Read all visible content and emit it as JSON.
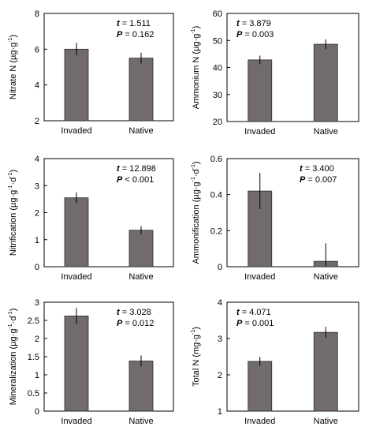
{
  "chart_data": [
    {
      "type": "bar",
      "ylabel": "Nitrate N (µg·g⁻¹)",
      "ylabel_parts": [
        "Nitrate N (µg·g",
        "-1",
        ")"
      ],
      "categories": [
        "Invaded",
        "Native"
      ],
      "values": [
        6.0,
        5.5
      ],
      "errors": [
        0.35,
        0.3
      ],
      "ylim": [
        2,
        8
      ],
      "yticks": [
        2,
        4,
        6,
        8
      ],
      "ytick_labels": [
        "2",
        "4",
        "6",
        "8"
      ],
      "stats": {
        "t": "1.511",
        "P_op": "=",
        "P": "0.162"
      },
      "annotation_position": "top-right",
      "bar_color": "#726b6b"
    },
    {
      "type": "bar",
      "ylabel": "Ammonium N (µg·g⁻¹)",
      "ylabel_parts": [
        "Ammonium N (µg·g",
        "-1",
        ")"
      ],
      "categories": [
        "Invaded",
        "Native"
      ],
      "values": [
        42.8,
        48.6
      ],
      "errors": [
        1.6,
        1.8
      ],
      "ylim": [
        20,
        60
      ],
      "yticks": [
        20,
        30,
        40,
        50,
        60
      ],
      "ytick_labels": [
        "20",
        "30",
        "40",
        "50",
        "60"
      ],
      "stats": {
        "t": "3.879",
        "P_op": "=",
        "P": "0.003"
      },
      "annotation_position": "top-left",
      "bar_color": "#726b6b"
    },
    {
      "type": "bar",
      "ylabel": "Nitrification (µg·g⁻¹·d⁻¹)",
      "ylabel_parts": [
        "Nitrification (µg·g",
        "-1",
        "·d",
        "-1",
        ")"
      ],
      "categories": [
        "Invaded",
        "Native"
      ],
      "values": [
        2.55,
        1.35
      ],
      "errors": [
        0.2,
        0.15
      ],
      "ylim": [
        0,
        4
      ],
      "yticks": [
        0,
        1,
        2,
        3,
        4
      ],
      "ytick_labels": [
        "0",
        "1",
        "2",
        "3",
        "4"
      ],
      "stats": {
        "t": "12.898",
        "P_op": "<",
        "P": "0.001"
      },
      "annotation_position": "top-right",
      "bar_color": "#726b6b"
    },
    {
      "type": "bar",
      "ylabel": "Ammonification (µg·g⁻¹·d⁻¹)",
      "ylabel_parts": [
        "Ammonification (µg·g",
        "-1",
        "·d",
        "-1",
        ")"
      ],
      "categories": [
        "Invaded",
        "Native"
      ],
      "values": [
        0.42,
        0.03
      ],
      "errors": [
        0.1,
        0.1
      ],
      "ylim": [
        0,
        0.6
      ],
      "yticks": [
        0,
        0.2,
        0.4,
        0.6
      ],
      "ytick_labels": [
        "0",
        "0.2",
        "0.4",
        "0.6"
      ],
      "stats": {
        "t": "3.400",
        "P_op": "=",
        "P": "0.007"
      },
      "annotation_position": "top-right",
      "bar_color": "#726b6b"
    },
    {
      "type": "bar",
      "ylabel": "Mineralization (µg·g⁻¹·d⁻¹)",
      "ylabel_parts": [
        "Mineralization (µg·g",
        "-1",
        "·d",
        "-1",
        ")"
      ],
      "categories": [
        "Invaded",
        "Native"
      ],
      "values": [
        2.62,
        1.38
      ],
      "errors": [
        0.22,
        0.15
      ],
      "ylim": [
        0,
        3
      ],
      "yticks": [
        0,
        0.5,
        1,
        1.5,
        2,
        2.5,
        3
      ],
      "ytick_labels": [
        "0",
        "0.5",
        "1",
        "1.5",
        "2",
        "2.5",
        "3"
      ],
      "stats": {
        "t": "3.028",
        "P_op": "=",
        "P": "0.012"
      },
      "annotation_position": "top-right",
      "bar_color": "#726b6b"
    },
    {
      "type": "bar",
      "ylabel": "Total N (mg·g⁻¹)",
      "ylabel_parts": [
        "Total N (mg·g",
        "-1",
        ")"
      ],
      "categories": [
        "Invaded",
        "Native"
      ],
      "values": [
        2.37,
        3.17
      ],
      "errors": [
        0.12,
        0.15
      ],
      "ylim": [
        1,
        4
      ],
      "yticks": [
        1,
        2,
        3,
        4
      ],
      "ytick_labels": [
        "1",
        "2",
        "3",
        "4"
      ],
      "stats": {
        "t": "4.071",
        "P_op": "=",
        "P": "0.001"
      },
      "annotation_position": "top-left",
      "bar_color": "#726b6b"
    }
  ]
}
